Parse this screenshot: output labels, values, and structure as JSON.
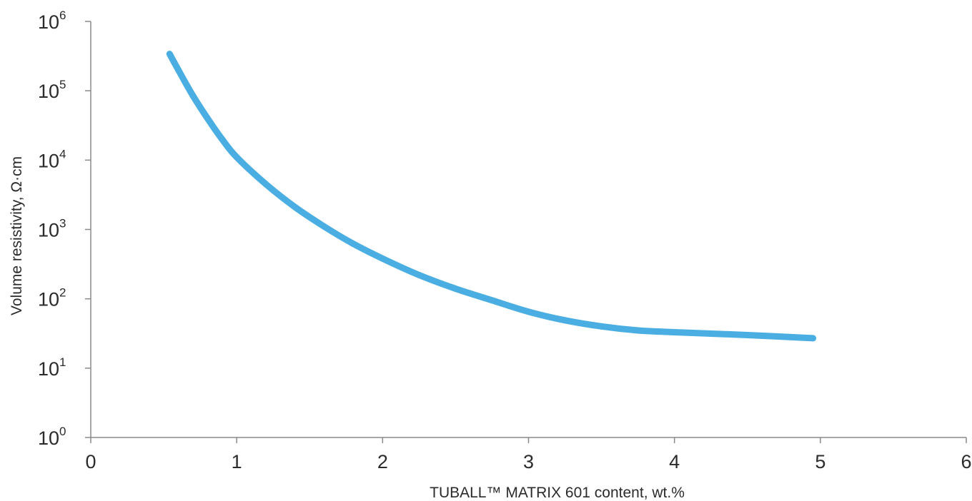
{
  "chart_data": {
    "type": "line",
    "title": "",
    "xlabel": "TUBALL™ MATRIX 601 content, wt.%",
    "ylabel": "Volume resistivity, Ω·cm",
    "x_scale": "linear",
    "y_scale": "log",
    "xlim": [
      0,
      6
    ],
    "ylim": [
      1,
      1000000
    ],
    "x_ticks": [
      "0",
      "1",
      "2",
      "3",
      "4",
      "5",
      "6"
    ],
    "y_ticks": [
      {
        "base": "10",
        "exp": "0"
      },
      {
        "base": "10",
        "exp": "1"
      },
      {
        "base": "10",
        "exp": "2"
      },
      {
        "base": "10",
        "exp": "3"
      },
      {
        "base": "10",
        "exp": "4"
      },
      {
        "base": "10",
        "exp": "5"
      },
      {
        "base": "10",
        "exp": "6"
      }
    ],
    "grid": false,
    "legend": "none",
    "series": [
      {
        "color": "#4aaee3",
        "x": [
          0.54,
          0.6,
          0.7,
          0.8,
          0.9,
          1.0,
          1.2,
          1.4,
          1.6,
          1.8,
          2.0,
          2.25,
          2.5,
          2.75,
          3.0,
          3.25,
          3.5,
          3.75,
          4.0,
          4.5,
          4.95
        ],
        "y": [
          340000,
          200000,
          85000,
          40000,
          20000,
          11000,
          4500,
          2100,
          1100,
          620,
          380,
          220,
          140,
          95,
          65,
          49,
          40,
          35,
          33,
          30,
          27
        ]
      }
    ]
  }
}
